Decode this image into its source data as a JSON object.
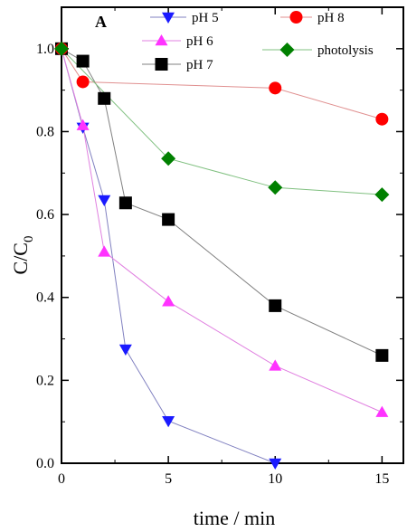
{
  "chart_data": {
    "type": "line",
    "panel_label": "A",
    "xlabel": "time / min",
    "ylabel": "C/C",
    "ylabel_sub": "0",
    "xlim": [
      0,
      16
    ],
    "ylim": [
      0,
      1.1
    ],
    "xticks": [
      0,
      5,
      10,
      15
    ],
    "xtick_labels": [
      "0",
      "5",
      "10",
      "15"
    ],
    "yticks": [
      0.0,
      0.2,
      0.4,
      0.6,
      0.8,
      1.0
    ],
    "ytick_labels": [
      "0.0",
      "0.2",
      "0.4",
      "0.6",
      "0.8",
      "1.0"
    ],
    "grid": false,
    "legend_position": "top",
    "series": [
      {
        "name": "pH 5",
        "marker": "triangle-down",
        "marker_color": "#1a1aff",
        "line_color": "#8080c0",
        "x": [
          0,
          1,
          2,
          3,
          5,
          10
        ],
        "y": [
          1.0,
          0.81,
          0.635,
          0.275,
          0.102,
          0.0
        ]
      },
      {
        "name": "pH 6",
        "marker": "triangle-up",
        "marker_color": "#ff33ff",
        "line_color": "#e080e0",
        "x": [
          0,
          1,
          2,
          5,
          10,
          15
        ],
        "y": [
          1.0,
          0.815,
          0.51,
          0.39,
          0.235,
          0.123
        ]
      },
      {
        "name": "pH 7",
        "marker": "square",
        "marker_color": "#000000",
        "line_color": "#808080",
        "x": [
          0,
          1,
          2,
          3,
          5,
          10,
          15
        ],
        "y": [
          1.0,
          0.97,
          0.88,
          0.628,
          0.588,
          0.38,
          0.26
        ]
      },
      {
        "name": "pH 8",
        "marker": "circle",
        "marker_color": "#ff0000",
        "line_color": "#e09090",
        "x": [
          0,
          1,
          10,
          15
        ],
        "y": [
          1.0,
          0.92,
          0.905,
          0.83
        ]
      },
      {
        "name": "photolysis",
        "marker": "diamond",
        "marker_color": "#008000",
        "line_color": "#80c080",
        "x": [
          0,
          5,
          10,
          15
        ],
        "y": [
          1.0,
          0.735,
          0.665,
          0.648
        ]
      }
    ]
  }
}
